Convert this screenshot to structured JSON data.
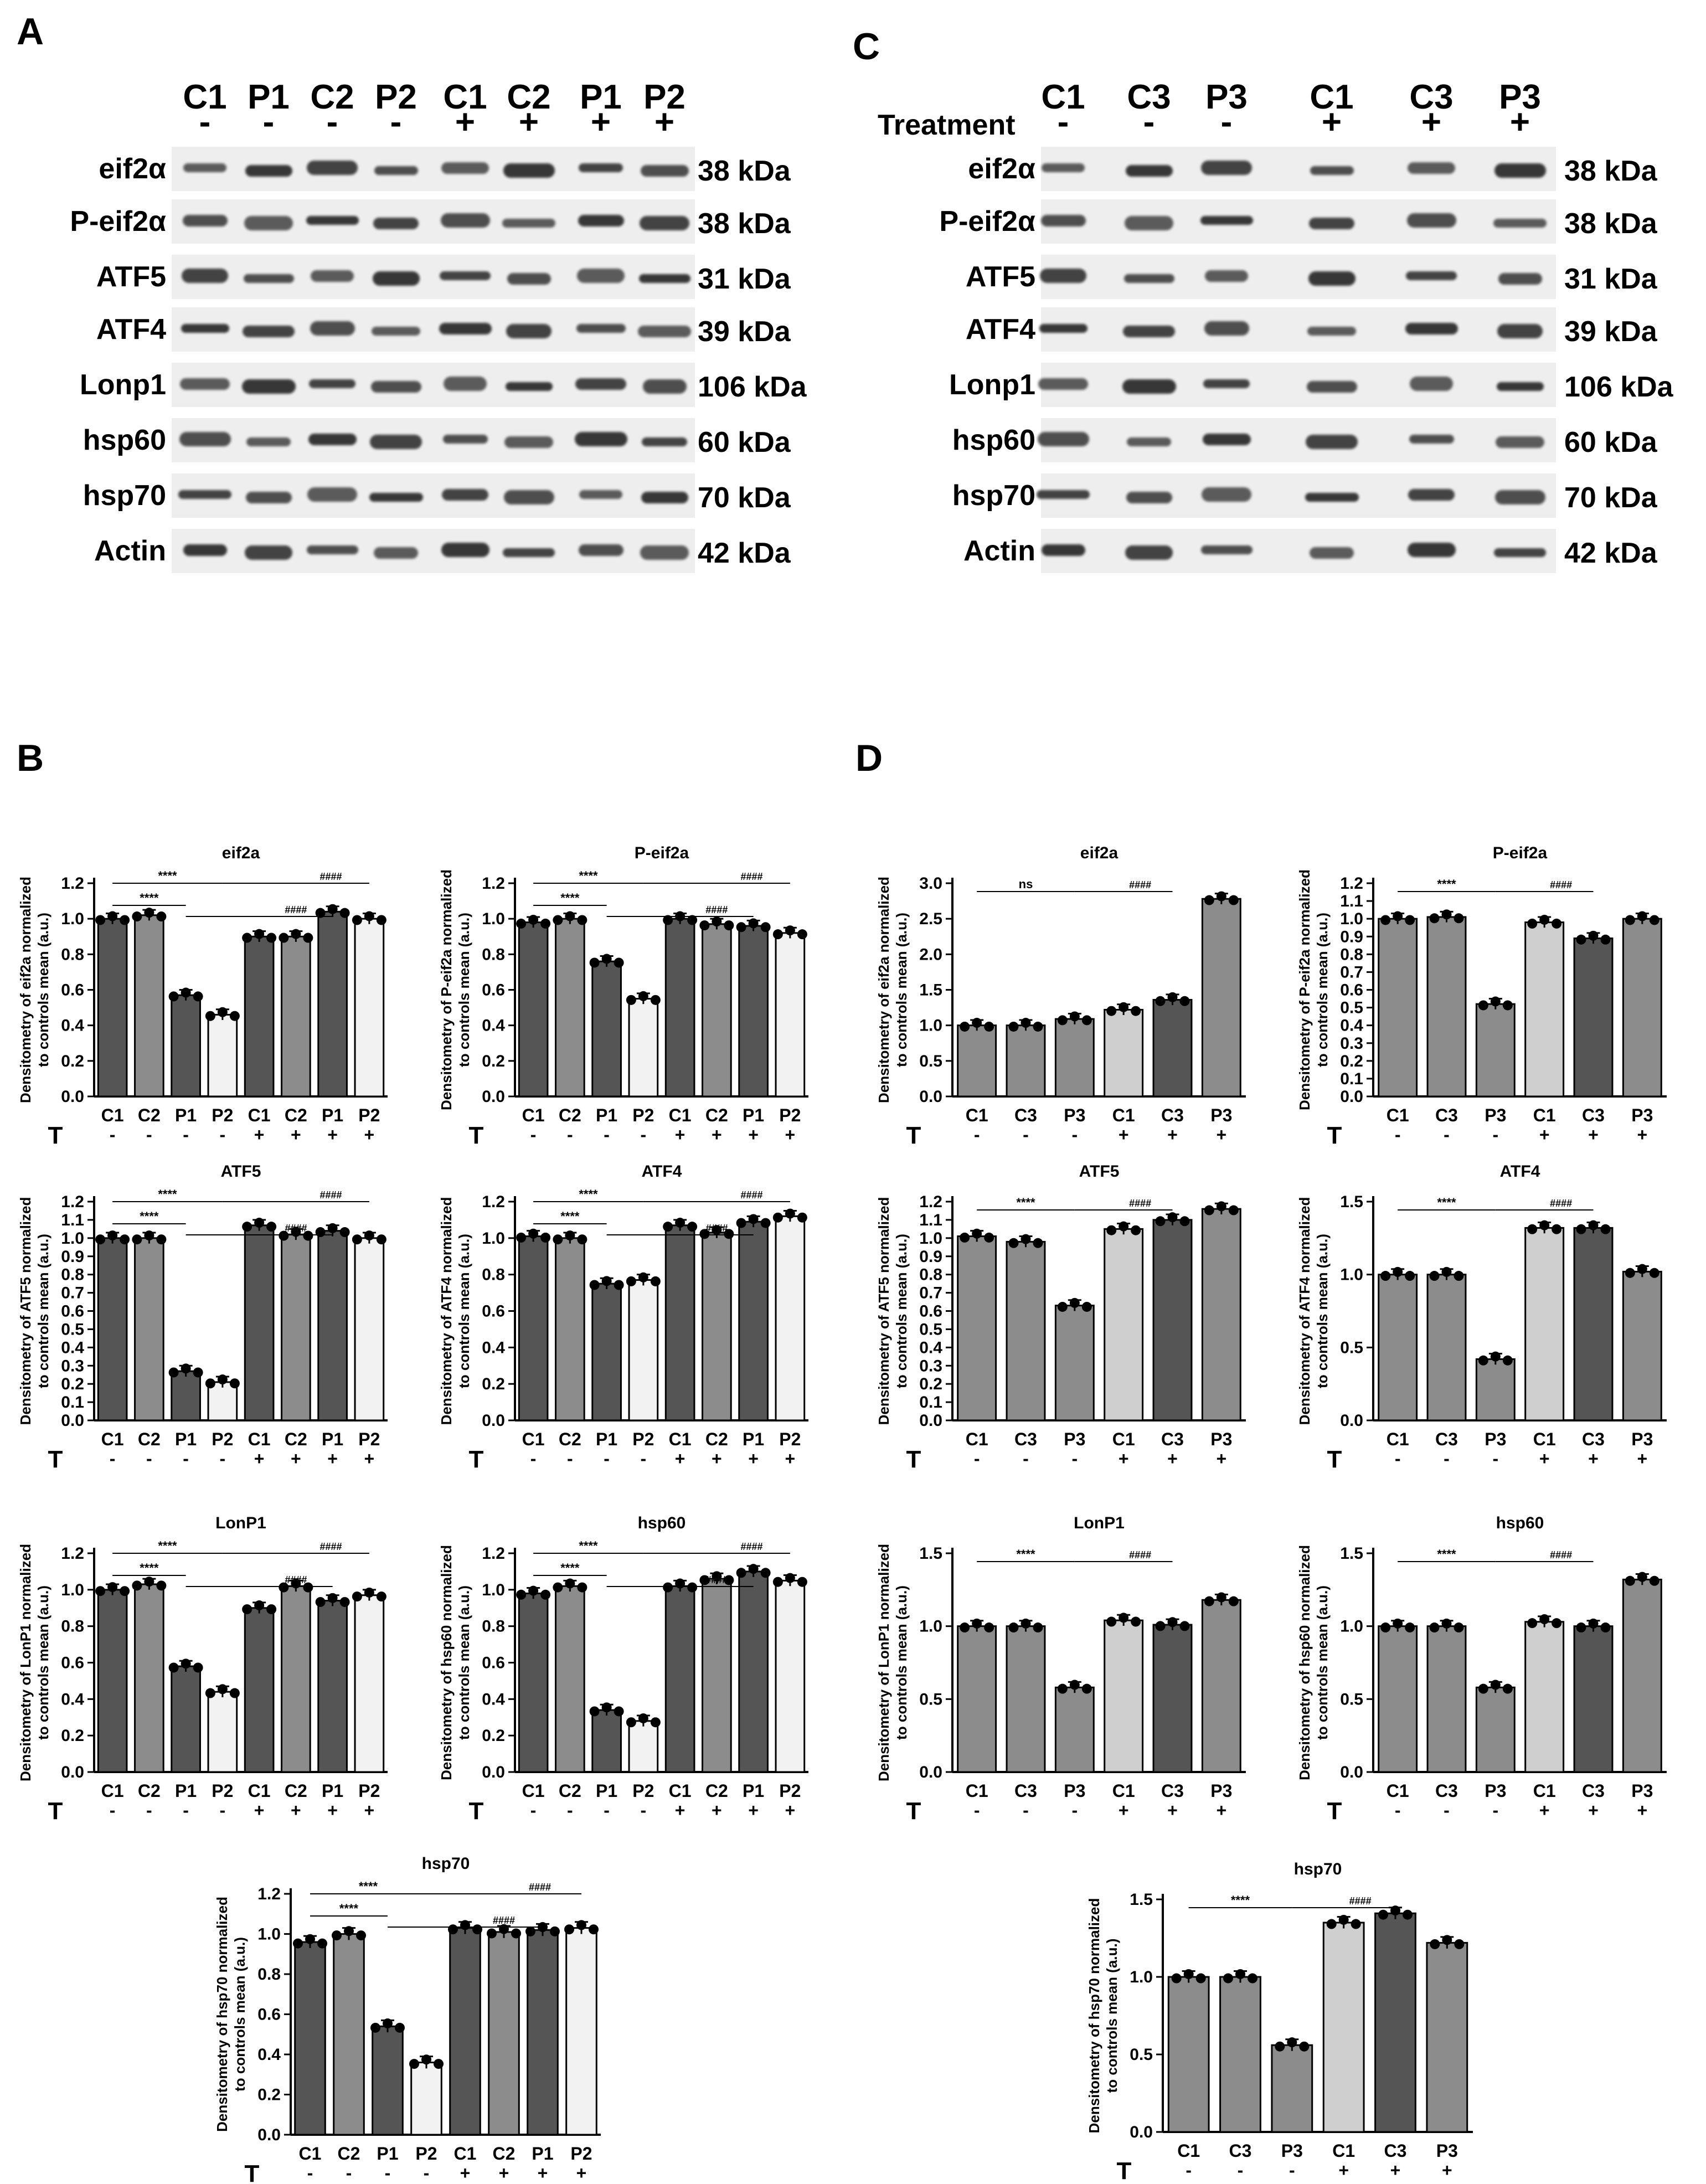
{
  "panel_a": {
    "letter": "A",
    "lanes": [
      "C1",
      "P1",
      "C2",
      "P2",
      "C1",
      "C2",
      "P1",
      "P2"
    ],
    "signs": [
      "-",
      "-",
      "-",
      "-",
      "+",
      "+",
      "+",
      "+"
    ],
    "blots": [
      {
        "name": "eif2α",
        "kda": "38 kDa"
      },
      {
        "name": "P-eif2α",
        "kda": "38 kDa"
      },
      {
        "name": "ATF5",
        "kda": "31 kDa"
      },
      {
        "name": "ATF4",
        "kda": "39 kDa"
      },
      {
        "name": "Lonp1",
        "kda": "106 kDa"
      },
      {
        "name": "hsp60",
        "kda": "60 kDa"
      },
      {
        "name": "hsp70",
        "kda": "70 kDa"
      },
      {
        "name": "Actin",
        "kda": "42 kDa"
      }
    ]
  },
  "panel_c": {
    "letter": "C",
    "treatment_label": "Treatment",
    "lanes": [
      "C1",
      "C3",
      "P3",
      "C1",
      "C3",
      "P3"
    ],
    "signs": [
      "-",
      "-",
      "-",
      "+",
      "+",
      "+"
    ],
    "blots": [
      {
        "name": "eif2α",
        "kda": "38 kDa"
      },
      {
        "name": "P-eif2α",
        "kda": "38 kDa"
      },
      {
        "name": "ATF5",
        "kda": "31 kDa"
      },
      {
        "name": "ATF4",
        "kda": "39 kDa"
      },
      {
        "name": "Lonp1",
        "kda": "106 kDa"
      },
      {
        "name": "hsp60",
        "kda": "60 kDa"
      },
      {
        "name": "hsp70",
        "kda": "70 kDa"
      },
      {
        "name": "Actin",
        "kda": "42 kDa"
      }
    ]
  },
  "panel_b": {
    "letter": "B"
  },
  "panel_d": {
    "letter": "D"
  },
  "colors": {
    "dark": "#555555",
    "mid": "#8c8c8c",
    "light": "#cfcfcf",
    "lighter": "#e6e6e6",
    "lightest": "#f2f2f2"
  },
  "chart_data": [
    {
      "type": "bar",
      "panel": "B",
      "title": "eif2a",
      "ylabel": "Densitometry of eif2a normalized to controls mean (a.u.)",
      "categories": [
        "C1",
        "C2",
        "P1",
        "P2",
        "C1",
        "C2",
        "P1",
        "P2"
      ],
      "treatment": [
        "-",
        "-",
        "-",
        "-",
        "+",
        "+",
        "+",
        "+"
      ],
      "values": [
        1.0,
        1.02,
        0.57,
        0.46,
        0.9,
        0.9,
        1.04,
        1.0
      ],
      "ylim": [
        0,
        1.2
      ],
      "yticks": [
        "0.0",
        "0.2",
        "0.4",
        "0.6",
        "0.8",
        "1.0",
        "1.2"
      ],
      "sig_top": "****",
      "sig_low": "****",
      "sig_hash_top": "####",
      "sig_hash_low": "####",
      "axis_t": "T"
    },
    {
      "type": "bar",
      "panel": "B",
      "title": "P-eif2a",
      "ylabel": "Densitometry of P-eif2a normalized to controls mean (a.u.)",
      "categories": [
        "C1",
        "C2",
        "P1",
        "P2",
        "C1",
        "C2",
        "P1",
        "P2"
      ],
      "treatment": [
        "-",
        "-",
        "-",
        "-",
        "+",
        "+",
        "+",
        "+"
      ],
      "values": [
        0.98,
        1.0,
        0.76,
        0.55,
        1.0,
        0.97,
        0.96,
        0.92
      ],
      "ylim": [
        0,
        1.2
      ],
      "yticks": [
        "0.0",
        "0.2",
        "0.4",
        "0.6",
        "0.8",
        "1.0",
        "1.2"
      ],
      "sig_top": "****",
      "sig_low": "****",
      "sig_hash_top": "####",
      "sig_hash_low": "####",
      "axis_t": "T"
    },
    {
      "type": "bar",
      "panel": "B",
      "title": "ATF5",
      "ylabel": "Densitometry of ATF5 normalized to controls mean (a.u.)",
      "categories": [
        "C1",
        "C2",
        "P1",
        "P2",
        "C1",
        "C2",
        "P1",
        "P2"
      ],
      "treatment": [
        "-",
        "-",
        "-",
        "-",
        "+",
        "+",
        "+",
        "+"
      ],
      "values": [
        1.0,
        1.0,
        0.27,
        0.21,
        1.07,
        1.02,
        1.04,
        1.0
      ],
      "ylim": [
        0,
        1.2
      ],
      "yticks": [
        "0.0",
        "0.1",
        "0.2",
        "0.3",
        "0.4",
        "0.5",
        "0.6",
        "0.7",
        "0.8",
        "0.9",
        "1.0",
        "1.1",
        "1.2"
      ],
      "sig_top": "****",
      "sig_low": "****",
      "sig_hash_top": "####",
      "sig_hash_low": "####",
      "axis_t": "T"
    },
    {
      "type": "bar",
      "panel": "B",
      "title": "ATF4",
      "ylabel": "Densitometry of ATF4 normalized to controls mean (a.u.)",
      "categories": [
        "C1",
        "C2",
        "P1",
        "P2",
        "C1",
        "C2",
        "P1",
        "P2"
      ],
      "treatment": [
        "-",
        "-",
        "-",
        "-",
        "+",
        "+",
        "+",
        "+"
      ],
      "values": [
        1.01,
        1.0,
        0.75,
        0.77,
        1.07,
        1.03,
        1.09,
        1.12
      ],
      "ylim": [
        0,
        1.2
      ],
      "yticks": [
        "0.0",
        "0.2",
        "0.4",
        "0.6",
        "0.8",
        "1.0",
        "1.2"
      ],
      "sig_top": "****",
      "sig_low": "****",
      "sig_hash_top": "####",
      "sig_hash_low": "####",
      "axis_t": "T"
    },
    {
      "type": "bar",
      "panel": "B",
      "title": "LonP1",
      "ylabel": "Densitometry of LonP1 normalized to controls mean (a.u.)",
      "categories": [
        "C1",
        "C2",
        "P1",
        "P2",
        "C1",
        "C2",
        "P1",
        "P2"
      ],
      "treatment": [
        "-",
        "-",
        "-",
        "-",
        "+",
        "+",
        "+",
        "+"
      ],
      "values": [
        1.0,
        1.03,
        0.58,
        0.44,
        0.9,
        1.02,
        0.94,
        0.97
      ],
      "ylim": [
        0,
        1.2
      ],
      "yticks": [
        "0.0",
        "0.2",
        "0.4",
        "0.6",
        "0.8",
        "1.0",
        "1.2"
      ],
      "sig_top": "****",
      "sig_low": "****",
      "sig_hash_top": "####",
      "sig_hash_low": "####",
      "axis_t": "T"
    },
    {
      "type": "bar",
      "panel": "B",
      "title": "hsp60",
      "ylabel": "Densitometry of hsp60 normalized to controls mean (a.u.)",
      "categories": [
        "C1",
        "C2",
        "P1",
        "P2",
        "C1",
        "C2",
        "P1",
        "P2"
      ],
      "treatment": [
        "-",
        "-",
        "-",
        "-",
        "+",
        "+",
        "+",
        "+"
      ],
      "values": [
        0.98,
        1.02,
        0.34,
        0.28,
        1.02,
        1.06,
        1.1,
        1.05
      ],
      "ylim": [
        0,
        1.2
      ],
      "yticks": [
        "0.0",
        "0.2",
        "0.4",
        "0.6",
        "0.8",
        "1.0",
        "1.2"
      ],
      "sig_top": "****",
      "sig_low": "****",
      "sig_hash_top": "####",
      "sig_hash_low": "####",
      "axis_t": "T"
    },
    {
      "type": "bar",
      "panel": "B",
      "title": "hsp70",
      "ylabel": "Densitometry of hsp70 normalized to controls mean (a.u.)",
      "categories": [
        "C1",
        "C2",
        "P1",
        "P2",
        "C1",
        "C2",
        "P1",
        "P2"
      ],
      "treatment": [
        "-",
        "-",
        "-",
        "-",
        "+",
        "+",
        "+",
        "+"
      ],
      "values": [
        0.96,
        1.0,
        0.54,
        0.36,
        1.03,
        1.01,
        1.02,
        1.03
      ],
      "ylim": [
        0,
        1.2
      ],
      "yticks": [
        "0.0",
        "0.2",
        "0.4",
        "0.6",
        "0.8",
        "1.0",
        "1.2"
      ],
      "sig_top": "****",
      "sig_low": "****",
      "sig_hash_top": "####",
      "sig_hash_low": "####",
      "axis_t": "T"
    },
    {
      "type": "bar",
      "panel": "D",
      "title": "eif2a",
      "ylabel": "Densitometry of eif2a normalized to controls mean (a.u.)",
      "categories": [
        "C1",
        "C3",
        "P3",
        "C1",
        "C3",
        "P3"
      ],
      "treatment": [
        "-",
        "-",
        "-",
        "+",
        "+",
        "+"
      ],
      "values": [
        1.0,
        1.0,
        1.09,
        1.22,
        1.36,
        2.78
      ],
      "ylim": [
        0,
        3.0
      ],
      "yticks": [
        "0.0",
        "0.5",
        "1.0",
        "1.5",
        "2.0",
        "2.5",
        "3.0"
      ],
      "sig_left": "ns",
      "sig_right": "####",
      "axis_t": "T"
    },
    {
      "type": "bar",
      "panel": "D",
      "title": "P-eif2a",
      "ylabel": "Densitometry of P-eif2a normalized to controls mean (a.u.)",
      "categories": [
        "C1",
        "C3",
        "P3",
        "C1",
        "C3",
        "P3"
      ],
      "treatment": [
        "-",
        "-",
        "-",
        "+",
        "+",
        "+"
      ],
      "values": [
        1.0,
        1.01,
        0.52,
        0.98,
        0.89,
        1.0
      ],
      "ylim": [
        0,
        1.2
      ],
      "yticks": [
        "0.0",
        "0.1",
        "0.2",
        "0.3",
        "0.4",
        "0.5",
        "0.6",
        "0.7",
        "0.8",
        "0.9",
        "1.0",
        "1.1",
        "1.2"
      ],
      "sig_left": "****",
      "sig_right": "####",
      "axis_t": "T"
    },
    {
      "type": "bar",
      "panel": "D",
      "title": "ATF5",
      "ylabel": "Densitometry of ATF5 normalized to controls mean (a.u.)",
      "categories": [
        "C1",
        "C3",
        "P3",
        "C1",
        "C3",
        "P3"
      ],
      "treatment": [
        "-",
        "-",
        "-",
        "+",
        "+",
        "+"
      ],
      "values": [
        1.01,
        0.98,
        0.63,
        1.05,
        1.1,
        1.16
      ],
      "ylim": [
        0,
        1.2
      ],
      "yticks": [
        "0.0",
        "0.1",
        "0.2",
        "0.3",
        "0.4",
        "0.5",
        "0.6",
        "0.7",
        "0.8",
        "0.9",
        "1.0",
        "1.1",
        "1.2"
      ],
      "sig_left": "****",
      "sig_right": "####",
      "axis_t": "T"
    },
    {
      "type": "bar",
      "panel": "D",
      "title": "ATF4",
      "ylabel": "Densitometry of ATF4 normalized to controls mean (a.u.)",
      "categories": [
        "C1",
        "C3",
        "P3",
        "C1",
        "C3",
        "P3"
      ],
      "treatment": [
        "-",
        "-",
        "-",
        "+",
        "+",
        "+"
      ],
      "values": [
        1.0,
        1.0,
        0.42,
        1.32,
        1.32,
        1.02
      ],
      "ylim": [
        0,
        1.5
      ],
      "yticks": [
        "0.0",
        "0.5",
        "1.0",
        "1.5"
      ],
      "sig_left": "****",
      "sig_right": "####",
      "axis_t": "T"
    },
    {
      "type": "bar",
      "panel": "D",
      "title": "LonP1",
      "ylabel": "Densitometry of LonP1 normalized to controls mean (a.u.)",
      "categories": [
        "C1",
        "C3",
        "P3",
        "C1",
        "C3",
        "P3"
      ],
      "treatment": [
        "-",
        "-",
        "-",
        "+",
        "+",
        "+"
      ],
      "values": [
        1.0,
        1.0,
        0.58,
        1.04,
        1.01,
        1.18
      ],
      "ylim": [
        0,
        1.5
      ],
      "yticks": [
        "0.0",
        "0.5",
        "1.0",
        "1.5"
      ],
      "sig_left": "****",
      "sig_right": "####",
      "axis_t": "T"
    },
    {
      "type": "bar",
      "panel": "D",
      "title": "hsp60",
      "ylabel": "Densitometry of hsp60 normalized to controls mean (a.u.)",
      "categories": [
        "C1",
        "C3",
        "P3",
        "C1",
        "C3",
        "P3"
      ],
      "treatment": [
        "-",
        "-",
        "-",
        "+",
        "+",
        "+"
      ],
      "values": [
        1.0,
        1.0,
        0.58,
        1.03,
        1.0,
        1.32
      ],
      "ylim": [
        0,
        1.5
      ],
      "yticks": [
        "0.0",
        "0.5",
        "1.0",
        "1.5"
      ],
      "sig_left": "****",
      "sig_right": "####",
      "axis_t": "T"
    },
    {
      "type": "bar",
      "panel": "D",
      "title": "hsp70",
      "ylabel": "Densitometry of hsp70 normalized to controls mean (a.u.)",
      "categories": [
        "C1",
        "C3",
        "P3",
        "C1",
        "C3",
        "P3"
      ],
      "treatment": [
        "-",
        "-",
        "-",
        "+",
        "+",
        "+"
      ],
      "values": [
        1.0,
        1.0,
        0.56,
        1.35,
        1.41,
        1.22
      ],
      "ylim": [
        0,
        1.5
      ],
      "yticks": [
        "0.0",
        "0.5",
        "1.0",
        "1.5"
      ],
      "sig_left": "****",
      "sig_right": "####",
      "axis_t": "T"
    }
  ]
}
